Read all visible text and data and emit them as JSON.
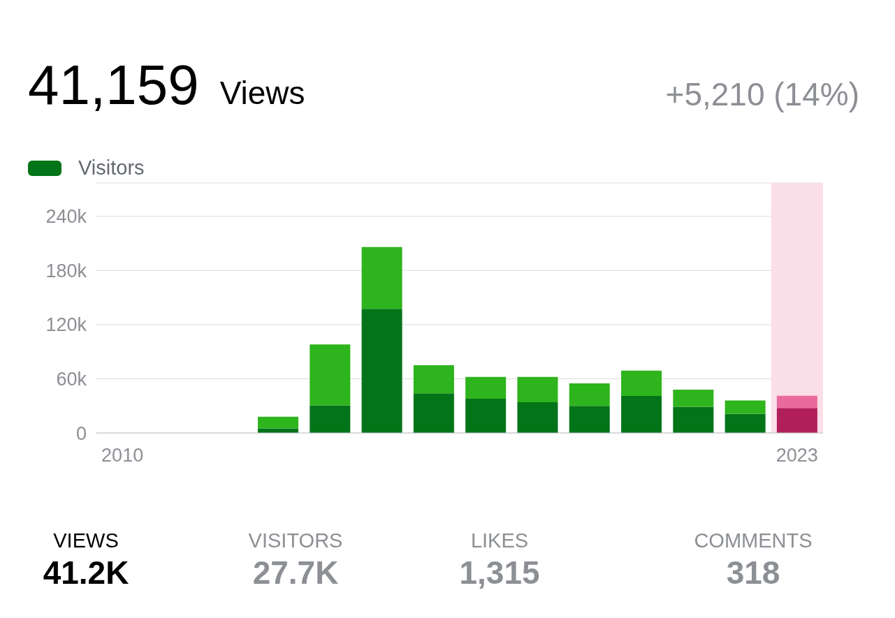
{
  "chart_data": {
    "type": "bar",
    "stacked": true,
    "categories": [
      "2010",
      null,
      null,
      null,
      null,
      null,
      null,
      null,
      null,
      null,
      null,
      null,
      null,
      "2023"
    ],
    "series": [
      {
        "name": "Visitors",
        "color": "#037418",
        "colors": [
          "#037418",
          "#037418",
          "#037418",
          "#037418",
          "#037418",
          "#037418",
          "#037418",
          "#037418",
          "#037418",
          "#037418",
          "#037418",
          "#037418",
          "#037418",
          "#b01f5a"
        ],
        "values": [
          0,
          0,
          0,
          5000,
          30500,
          137600,
          44000,
          38000,
          34000,
          30000,
          41000,
          29000,
          21000,
          27700
        ]
      },
      {
        "color": "#2eb41c",
        "colors": [
          "#2eb41c",
          "#2eb41c",
          "#2eb41c",
          "#2eb41c",
          "#2eb41c",
          "#2eb41c",
          "#2eb41c",
          "#2eb41c",
          "#2eb41c",
          "#2eb41c",
          "#2eb41c",
          "#2eb41c",
          "#2eb41c",
          "#ea6b9b"
        ],
        "values": [
          0,
          0,
          0,
          13000,
          67500,
          68400,
          31000,
          24000,
          28000,
          25000,
          28000,
          19000,
          15000,
          13500
        ]
      }
    ],
    "ylim": [
      0,
      277000
    ],
    "yticks": [
      0,
      {
        "value": 60000,
        "label": "60k"
      },
      {
        "value": 120000,
        "label": "120k"
      },
      {
        "value": 180000,
        "label": "180k"
      },
      {
        "value": 240000,
        "label": "240k"
      }
    ],
    "grid": "y",
    "legend": "top left",
    "bands": [
      {
        "axis": "x",
        "from": "2023",
        "to": "2023",
        "color": "#fadfe9"
      }
    ],
    "annotations": [
      "41,159",
      "Views",
      "+5,210 (14%)",
      "VIEWS",
      "41.2K",
      "VISITORS",
      "27.7K",
      "LIKES",
      "1,315",
      "COMMENTS",
      "318"
    ]
  }
}
